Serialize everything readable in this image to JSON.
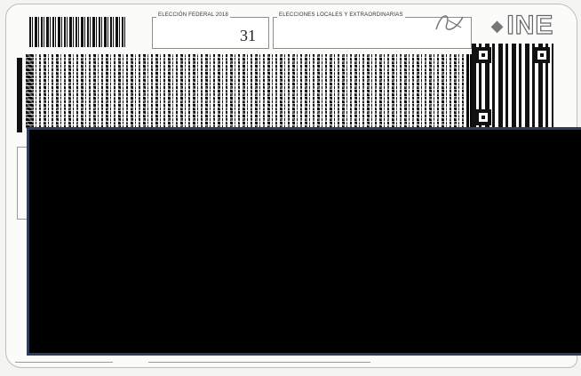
{
  "document": {
    "type": "INE voter ID card (reverse side)",
    "logo_text": "INE",
    "fields": {
      "federal_election": {
        "label": "ELECCIÓN FEDERAL 2018",
        "value": "31"
      },
      "local_elections": {
        "label": "ELECCIONES LOCALES Y EXTRAORDINARIAS",
        "value": ""
      }
    },
    "redaction": {
      "color": "#000000",
      "border_color": "#2e3c58"
    }
  }
}
